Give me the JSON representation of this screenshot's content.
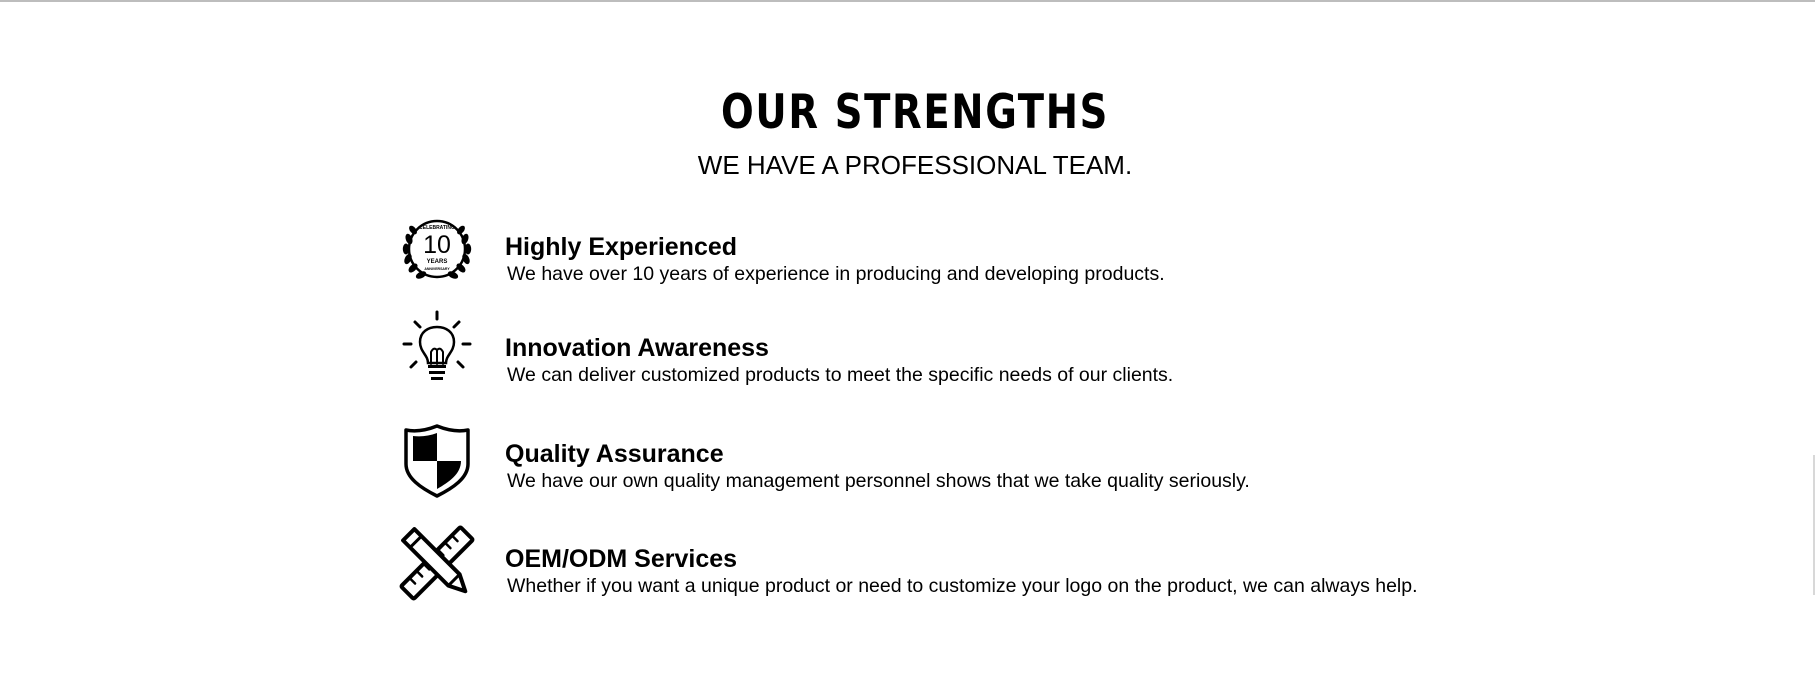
{
  "section": {
    "title": "OUR STRENGTHS",
    "subtitle": "WE HAVE A PROFESSIONAL TEAM."
  },
  "strengths": [
    {
      "icon": "ten-years-laurel-icon",
      "badge_top": "CELEBRATING",
      "badge_number": "10",
      "badge_bottom": "YEARS",
      "badge_footer": "ANNIVERSARY",
      "heading": "Highly Experienced",
      "description": "We have over 10 years of experience in producing and developing products."
    },
    {
      "icon": "lightbulb-icon",
      "heading": "Innovation Awareness",
      "description": "We can deliver customized products to meet the specific needs of our clients."
    },
    {
      "icon": "shield-icon",
      "heading": "Quality Assurance",
      "description": "We have our own quality management personnel shows that we take quality seriously."
    },
    {
      "icon": "ruler-pencil-icon",
      "heading": "OEM/ODM Services",
      "description": "Whether if you want a unique product or need to customize your logo on the product, we can always help."
    }
  ],
  "colors": {
    "text": "#000000",
    "background": "#ffffff",
    "top_rule": "#bdbdbd"
  }
}
